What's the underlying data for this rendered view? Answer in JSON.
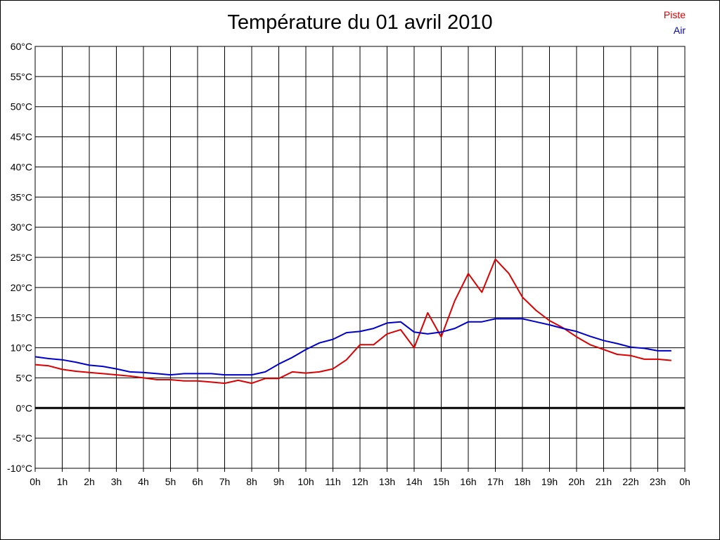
{
  "chart_data": {
    "type": "line",
    "title": "Température du 01 avril 2010",
    "xlabel": "",
    "ylabel": "",
    "ylim": [
      -10,
      60
    ],
    "y_ticks": [
      60,
      55,
      50,
      45,
      40,
      35,
      30,
      25,
      20,
      15,
      10,
      5,
      0,
      -5,
      -10
    ],
    "y_tick_labels": [
      "60°C",
      "55°C",
      "50°C",
      "45°C",
      "40°C",
      "35°C",
      "30°C",
      "25°C",
      "20°C",
      "15°C",
      "10°C",
      "5°C",
      "0°C",
      "-5°C",
      "-10°C"
    ],
    "xlim": [
      0,
      24
    ],
    "x_tick_labels": [
      "0h",
      "1h",
      "2h",
      "3h",
      "4h",
      "5h",
      "6h",
      "7h",
      "8h",
      "9h",
      "10h",
      "11h",
      "12h",
      "13h",
      "14h",
      "15h",
      "16h",
      "17h",
      "18h",
      "19h",
      "20h",
      "21h",
      "22h",
      "23h",
      "0h"
    ],
    "grid": true,
    "zero_line": true,
    "legend_position": "top-right",
    "x": [
      0,
      0.5,
      1,
      1.5,
      2,
      2.5,
      3,
      3.5,
      4,
      4.5,
      5,
      5.5,
      6,
      6.5,
      7,
      7.5,
      8,
      8.5,
      9,
      9.5,
      10,
      10.5,
      11,
      11.5,
      12,
      12.5,
      13,
      13.5,
      14,
      14.5,
      15,
      15.5,
      16,
      16.5,
      17,
      17.5,
      18,
      18.5,
      19,
      19.5,
      20,
      20.5,
      21,
      21.5,
      22,
      22.5,
      23,
      23.5
    ],
    "series": [
      {
        "name": "Piste",
        "color": "#dd0000",
        "values": [
          7.2,
          7.0,
          6.4,
          6.1,
          5.9,
          5.7,
          5.5,
          5.3,
          5.0,
          4.7,
          4.7,
          4.5,
          4.5,
          4.3,
          4.1,
          4.6,
          4.1,
          4.9,
          4.9,
          6.0,
          5.8,
          6.0,
          6.5,
          8.0,
          10.5,
          10.5,
          12.3,
          13.0,
          10.0,
          15.8,
          11.8,
          17.8,
          22.3,
          19.2,
          24.7,
          22.3,
          18.4,
          16.2,
          14.5,
          13.3,
          11.8,
          10.5,
          9.7,
          8.9,
          8.7,
          8.1,
          8.1,
          7.9
        ]
      },
      {
        "name": "Air",
        "color": "#0000cc",
        "values": [
          8.5,
          8.2,
          8.0,
          7.6,
          7.1,
          6.9,
          6.5,
          6.0,
          5.9,
          5.7,
          5.5,
          5.7,
          5.7,
          5.7,
          5.5,
          5.5,
          5.5,
          6.0,
          7.3,
          8.4,
          9.7,
          10.8,
          11.4,
          12.5,
          12.7,
          13.2,
          14.1,
          14.3,
          12.6,
          12.3,
          12.6,
          13.2,
          14.3,
          14.3,
          14.8,
          14.8,
          14.8,
          14.3,
          13.8,
          13.2,
          12.7,
          11.9,
          11.2,
          10.7,
          10.1,
          9.9,
          9.5,
          9.5
        ]
      }
    ]
  }
}
